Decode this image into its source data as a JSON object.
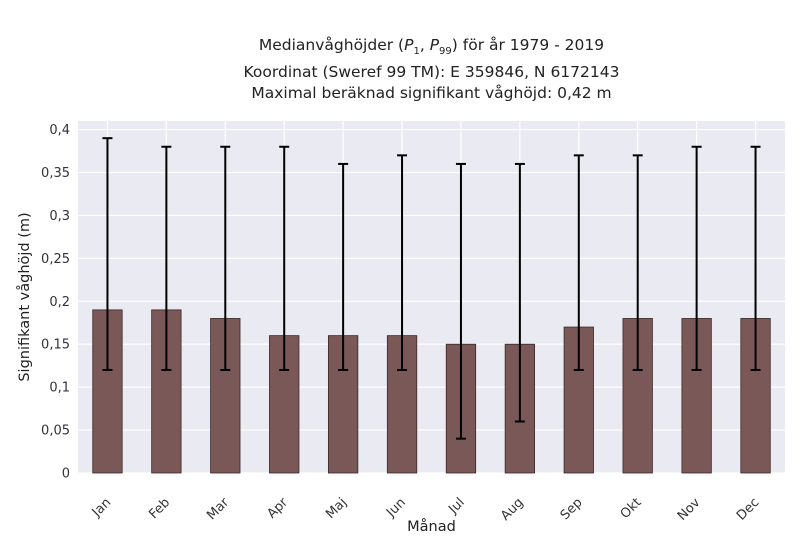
{
  "title": {
    "line1_prefix": "Medianvåghöjder (",
    "line1_p1": "P",
    "line1_p1_sub": "1",
    "line1_sep": ", ",
    "line1_p99": "P",
    "line1_p99_sub": "99",
    "line1_suffix": ") för år 1979 - 2019",
    "line2": "Koordinat (Sweref 99 TM): E 359846, N 6172143",
    "line3": "Maximal beräknad signifikant våghöjd: 0,42 m"
  },
  "chart_data": {
    "type": "bar",
    "categories": [
      "Jan",
      "Feb",
      "Mar",
      "Apr",
      "Maj",
      "Jun",
      "Jul",
      "Aug",
      "Sep",
      "Okt",
      "Nov",
      "Dec"
    ],
    "values": [
      0.19,
      0.19,
      0.18,
      0.16,
      0.16,
      0.16,
      0.15,
      0.15,
      0.17,
      0.18,
      0.18,
      0.18
    ],
    "error_low": [
      0.12,
      0.12,
      0.12,
      0.12,
      0.12,
      0.12,
      0.04,
      0.06,
      0.12,
      0.12,
      0.12,
      0.12
    ],
    "error_high": [
      0.39,
      0.38,
      0.38,
      0.38,
      0.36,
      0.37,
      0.36,
      0.36,
      0.37,
      0.37,
      0.38,
      0.38
    ],
    "xlabel": "Månad",
    "ylabel": "Signifikant våghöjd (m)",
    "ylim": [
      0,
      0.41
    ],
    "yticks": [
      0,
      0.05,
      0.1,
      0.15,
      0.2,
      0.25,
      0.3,
      0.35,
      0.4
    ],
    "ytick_labels": [
      "0",
      "0,05",
      "0,1",
      "0,15",
      "0,2",
      "0,25",
      "0,3",
      "0,35",
      "0,4"
    ],
    "grid": true,
    "colors": {
      "bar": "#7a5858",
      "bar_edge": "#3a2828",
      "error": "#000000",
      "background": "#eaeaf2",
      "grid": "#ffffff"
    }
  }
}
